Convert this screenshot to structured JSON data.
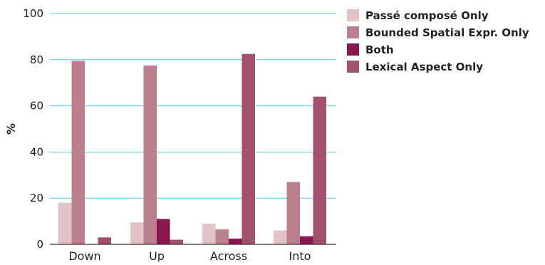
{
  "chart_data": {
    "type": "bar",
    "title": "",
    "xlabel": "",
    "ylabel": "%",
    "ylim": [
      0,
      100
    ],
    "yticks": [
      0,
      20,
      40,
      60,
      80,
      100
    ],
    "grid": true,
    "legend_placement": "top-right",
    "categories": [
      "Down",
      "Up",
      "Across",
      "Into"
    ],
    "series": [
      {
        "name": "Passé composé Only",
        "color": "#e2c3c8",
        "values": [
          18,
          9.5,
          9,
          6
        ]
      },
      {
        "name": "Bounded Spatial Expr. Only",
        "color": "#bb7f8e",
        "values": [
          79.5,
          77.5,
          6.5,
          27
        ]
      },
      {
        "name": "Both",
        "color": "#8a1650",
        "values": [
          0,
          11,
          2.5,
          3.5
        ]
      },
      {
        "name": "Lexical Aspect Only",
        "color": "#a3506d",
        "values": [
          3,
          2,
          82.5,
          64
        ]
      }
    ],
    "gridline_color": "#5bc8e6",
    "axis_color": "#333333"
  }
}
